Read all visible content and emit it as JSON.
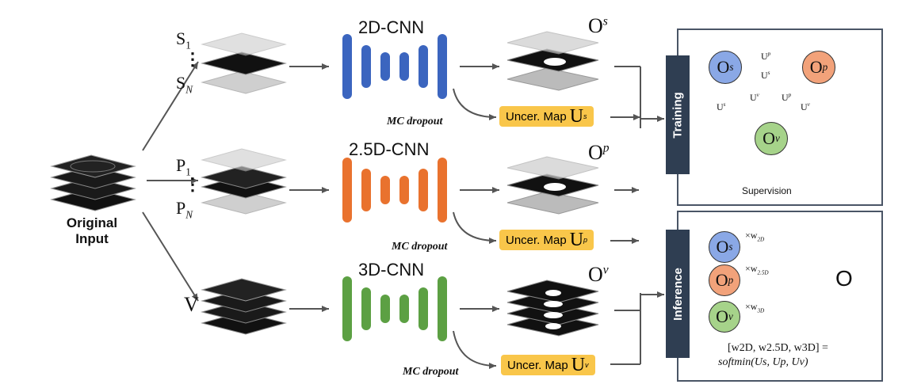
{
  "input": {
    "label_line1": "Original",
    "label_line2": "Input"
  },
  "slices": {
    "s_top": "S",
    "s_top_sub": "1",
    "s_bottom": "S",
    "s_bottom_sub": "N",
    "p_top": "P",
    "p_top_sub": "1",
    "p_bottom": "P",
    "p_bottom_sub": "N",
    "v": "V",
    "ellipsis": "⋮"
  },
  "networks": [
    {
      "title": "2D-CNN",
      "color": "#3b65bf",
      "output": "O",
      "output_sup": "s",
      "uncer": "Uncer. Map",
      "uncer_sym": "U",
      "uncer_sup": "s"
    },
    {
      "title": "2.5D-CNN",
      "color": "#e9722e",
      "output": "O",
      "output_sup": "p",
      "uncer": "Uncer. Map",
      "uncer_sym": "U",
      "uncer_sup": "p"
    },
    {
      "title": "3D-CNN",
      "color": "#5ca043",
      "output": "O",
      "output_sup": "v",
      "uncer": "Uncer. Map",
      "uncer_sym": "U",
      "uncer_sup": "v"
    }
  ],
  "mc_dropout": "MC dropout",
  "training": {
    "tab": "Training",
    "nodes": {
      "s": "O",
      "s_sup": "s",
      "p": "O",
      "p_sup": "p",
      "v": "O",
      "v_sup": "v"
    },
    "edges": {
      "up_top": "U",
      "up_top_sup": "p",
      "us_top": "U",
      "us_top_sup": "s",
      "us_left": "U",
      "us_left_sup": "s",
      "uv_left": "U",
      "uv_left_sup": "v",
      "up_right": "U",
      "up_right_sup": "p",
      "uv_right": "U",
      "uv_right_sup": "v"
    },
    "supervision": "Supervision"
  },
  "inference": {
    "tab": "Inference",
    "nodes": {
      "s": "O",
      "s_sup": "s",
      "p": "O",
      "p_sup": "p",
      "v": "O",
      "v_sup": "v"
    },
    "weights": {
      "w1": "×w",
      "w1_sub": "2D",
      "w2": "×w",
      "w2_sub": "2.5D",
      "w3": "×w",
      "w3_sub": "3D"
    },
    "output": "O",
    "formula_line1": "[w2D, w2.5D, w3D] =",
    "formula_line2": "softmin(Us, Up, Uv)"
  },
  "colors": {
    "blue": "#3b65bf",
    "orange": "#e9722e",
    "green": "#5ca043",
    "node_blue": "#8aa8e6",
    "node_orange": "#f2a27a",
    "node_green": "#a6d38a",
    "red": "#c0282e",
    "tab": "#2f3e52",
    "yellow": "#f9c64a"
  }
}
